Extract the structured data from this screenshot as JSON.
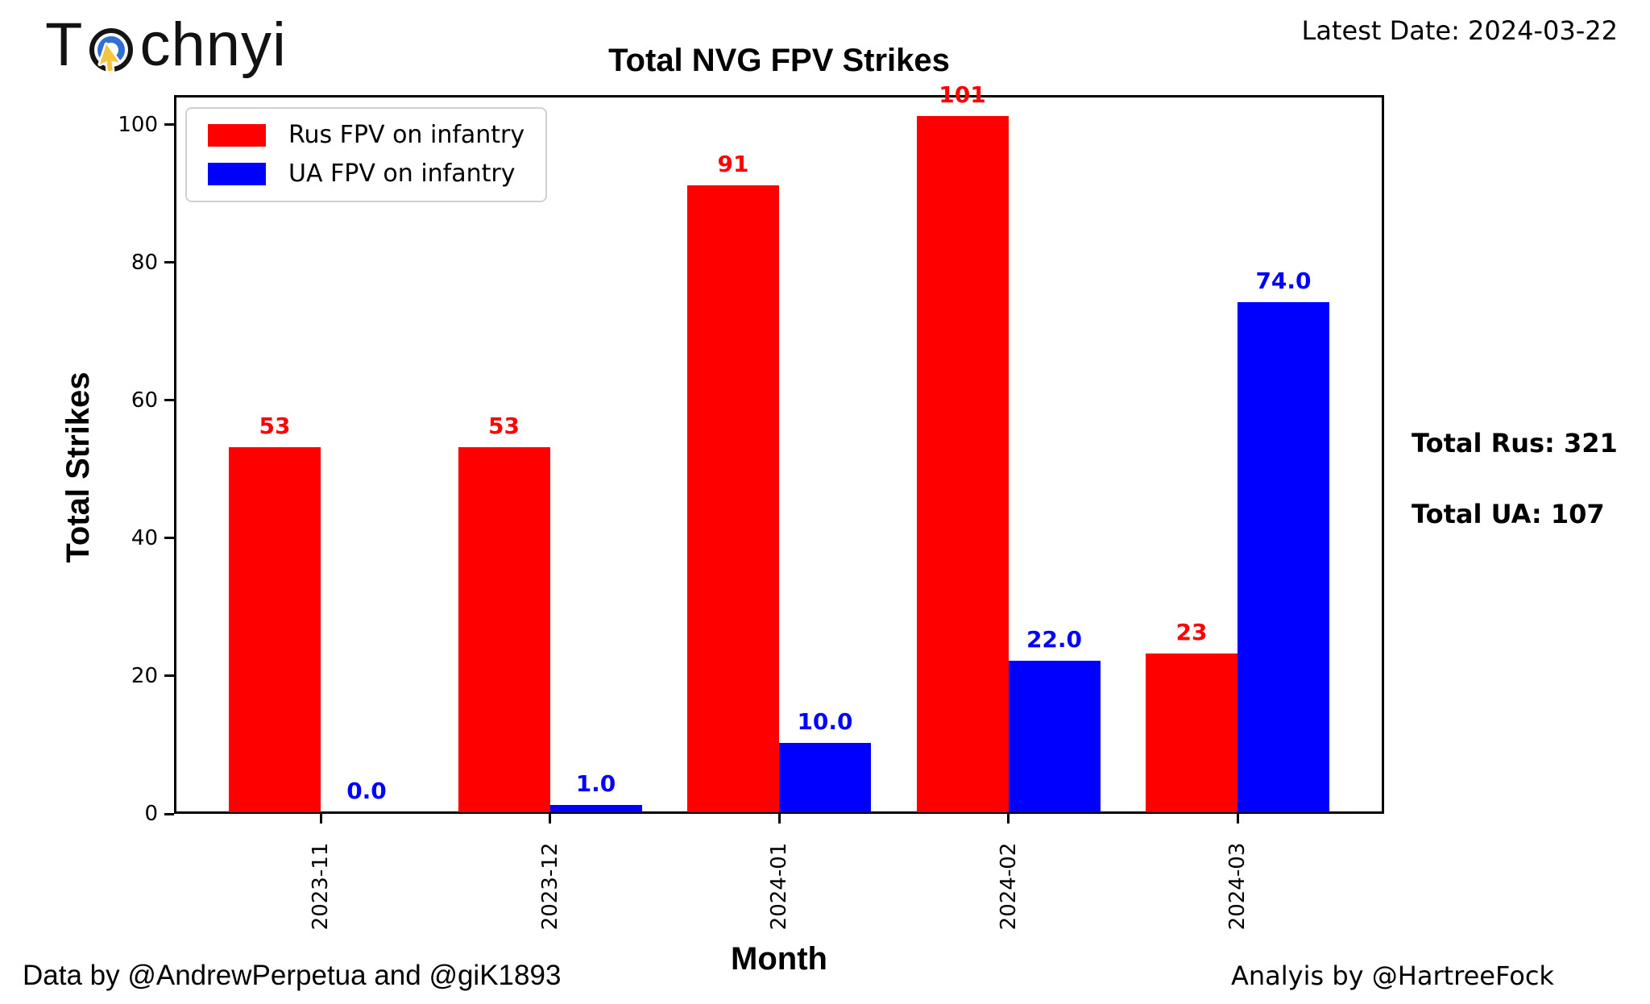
{
  "logo": {
    "prefix": "T",
    "suffix": "chnyi",
    "icon_colors": {
      "ring": "#141414",
      "inner_ring": "#2f6fd6",
      "cursor": "#f4c63f"
    }
  },
  "header": {
    "latest_date": "Latest Date: 2024-03-22"
  },
  "chart_data": {
    "type": "bar",
    "title": "Total NVG FPV Strikes",
    "xlabel": "Month",
    "ylabel": "Total Strikes",
    "categories": [
      "2023-11",
      "2023-12",
      "2024-01",
      "2024-02",
      "2024-03"
    ],
    "series": [
      {
        "name": "Rus FPV on infantry",
        "color": "#ff0000",
        "values": [
          53,
          53,
          91,
          101,
          23
        ],
        "value_labels": [
          "53",
          "53",
          "91",
          "101",
          "23"
        ]
      },
      {
        "name": "UA FPV on infantry",
        "color": "#0000ff",
        "values": [
          0,
          1,
          10,
          22,
          74
        ],
        "value_labels": [
          "0.0",
          "1.0",
          "10.0",
          "22.0",
          "74.0"
        ]
      }
    ],
    "yticks": [
      0,
      20,
      40,
      60,
      80,
      100
    ],
    "ylim": [
      0,
      104.3
    ],
    "grid": false,
    "legend_position": "upper left"
  },
  "annotations": {
    "total_rus": "Total Rus: 321",
    "total_ua": "Total UA: 107"
  },
  "footer": {
    "left": "Data by @AndrewPerpetua and @giK1893",
    "right": "Analyis by @HartreeFock"
  }
}
